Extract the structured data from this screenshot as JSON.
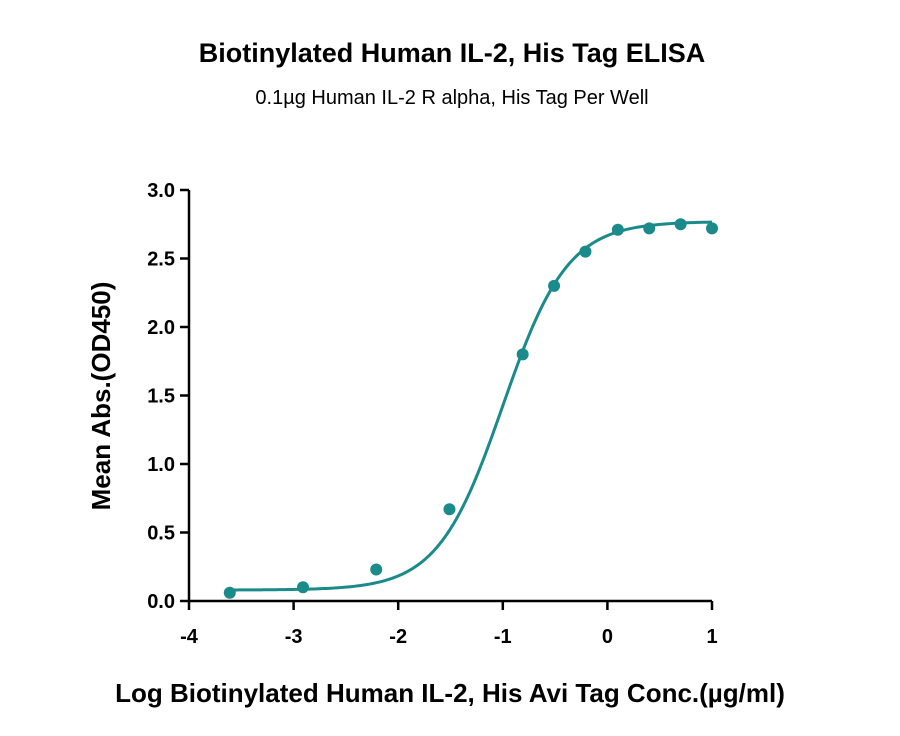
{
  "chart_data": {
    "type": "scatter",
    "title": "Biotinylated Human IL-2, His Tag ELISA",
    "subtitle": "0.1µg Human IL-2 R alpha, His Tag Per Well",
    "xlabel": "Log Biotinylated Human IL-2, His Avi Tag Conc.(µg/ml)",
    "ylabel": "Mean Abs.(OD450)",
    "xlim": [
      -4,
      1
    ],
    "ylim": [
      0,
      3
    ],
    "x_ticks": [
      -4,
      -3,
      -2,
      -1,
      0,
      1
    ],
    "x_tick_labels": [
      "-4",
      "-3",
      "-2",
      "-1",
      "0",
      "1"
    ],
    "y_ticks": [
      0,
      0.5,
      1.0,
      1.5,
      2.0,
      2.5,
      3.0
    ],
    "y_tick_labels": [
      "0.0",
      "0.5",
      "1.0",
      "1.5",
      "2.0",
      "2.5",
      "3.0"
    ],
    "grid": false,
    "color": "#1b8a8a",
    "series": [
      {
        "points": [
          {
            "x": -3.61,
            "y": 0.06
          },
          {
            "x": -2.91,
            "y": 0.1
          },
          {
            "x": -2.21,
            "y": 0.23
          },
          {
            "x": -1.51,
            "y": 0.67
          },
          {
            "x": -0.81,
            "y": 1.8
          },
          {
            "x": -0.51,
            "y": 2.3
          },
          {
            "x": -0.21,
            "y": 2.55
          },
          {
            "x": 0.1,
            "y": 2.71
          },
          {
            "x": 0.4,
            "y": 2.72
          },
          {
            "x": 0.7,
            "y": 2.75
          },
          {
            "x": 1.0,
            "y": 2.72
          }
        ],
        "fit": {
          "model": "4PL",
          "bottom": 0.08,
          "top": 2.77,
          "log_ec50": -1.0,
          "hill_slope": 1.4
        }
      }
    ]
  }
}
